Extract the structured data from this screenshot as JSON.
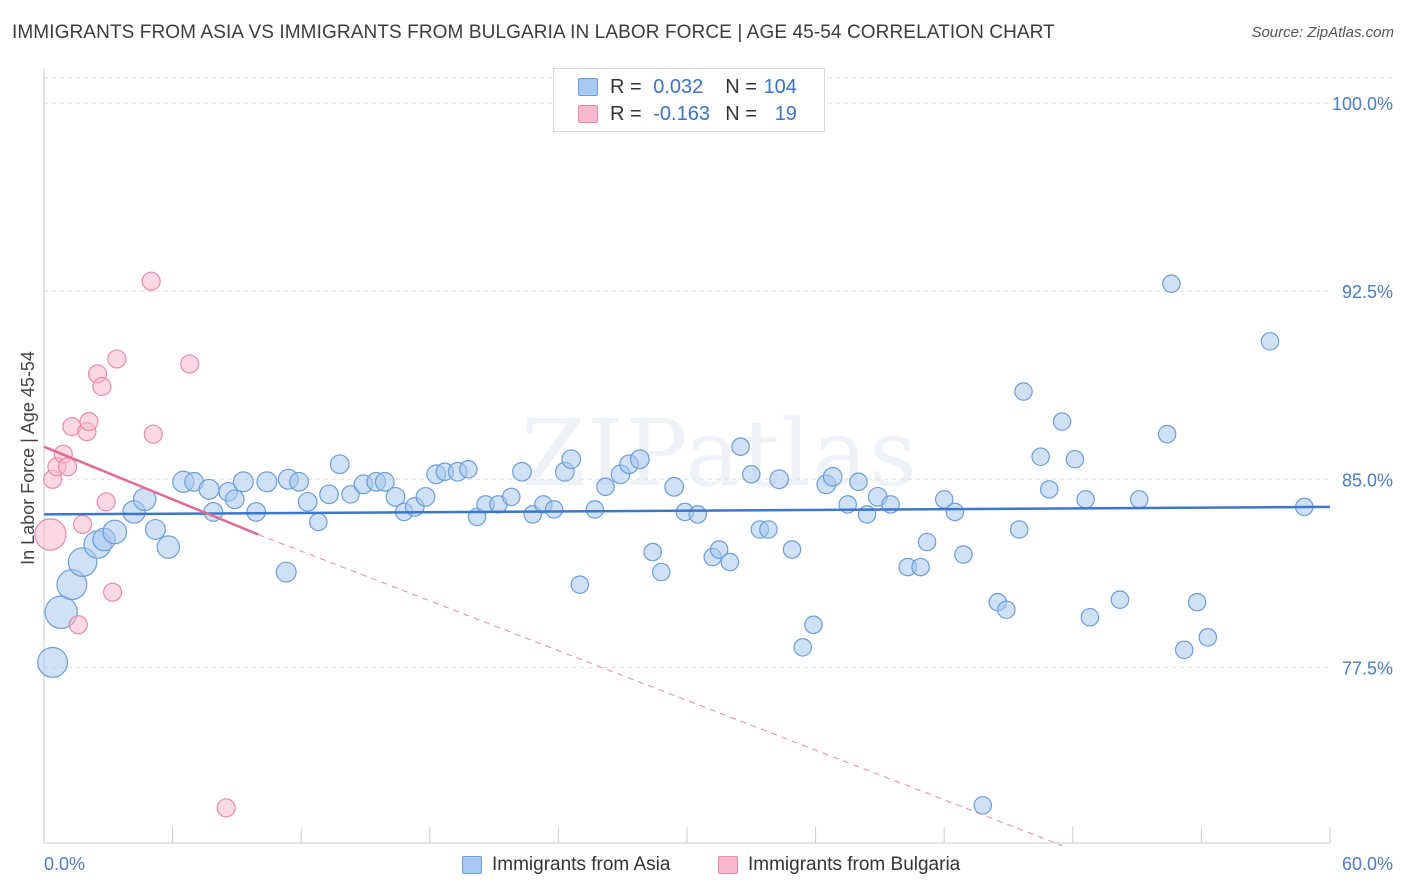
{
  "title": "IMMIGRANTS FROM ASIA VS IMMIGRANTS FROM BULGARIA IN LABOR FORCE | AGE 45-54 CORRELATION CHART",
  "source": "Source: ZipAtlas.com",
  "watermark": "ZIPatlas",
  "colors": {
    "asia_fill": "#a9c8ef",
    "asia_stroke": "#6b9ed9",
    "asia_line": "#3b78cc",
    "bulgaria_fill": "#f7b9cc",
    "bulgaria_stroke": "#e88aa6",
    "bulgaria_line": "#e06b93",
    "tick_text": "#4a7cc4"
  },
  "legend": {
    "asia": {
      "r_label": "R =",
      "r_value": "0.032",
      "n_label": "N =",
      "n_value": "104"
    },
    "bulgaria": {
      "r_label": "R =",
      "r_value": "-0.163",
      "n_label": "N =",
      "n_value": "19"
    }
  },
  "bottom_legend": {
    "asia": "Immigrants from Asia",
    "bulgaria": "Immigrants from Bulgaria"
  },
  "chart_data": {
    "type": "scatter",
    "title": "IMMIGRANTS FROM ASIA VS IMMIGRANTS FROM BULGARIA IN LABOR FORCE | AGE 45-54 CORRELATION CHART",
    "xlabel": "",
    "ylabel": "In Labor Force | Age 45-54",
    "xlim": [
      0,
      60
    ],
    "ylim": [
      70.5,
      101
    ],
    "x_tick_labels": {
      "left": "0.0%",
      "right": "60.0%"
    },
    "y_ticks": [
      {
        "value": 100.0,
        "label": "100.0%"
      },
      {
        "value": 92.5,
        "label": "92.5%"
      },
      {
        "value": 85.0,
        "label": "85.0%"
      },
      {
        "value": 77.5,
        "label": "77.5%"
      }
    ],
    "series": [
      {
        "name": "Immigrants from Asia",
        "trend": {
          "x0": 0,
          "y0": 83.6,
          "x1": 60,
          "y1": 83.9
        },
        "points": [
          [
            0.4,
            77.7,
            2.4
          ],
          [
            0.8,
            79.7,
            2.6
          ],
          [
            1.3,
            80.8,
            2.4
          ],
          [
            1.8,
            81.7,
            2.3
          ],
          [
            2.5,
            82.4,
            2.2
          ],
          [
            2.8,
            82.6,
            1.8
          ],
          [
            3.3,
            82.9,
            1.9
          ],
          [
            4.2,
            83.7,
            1.8
          ],
          [
            4.7,
            84.2,
            1.8
          ],
          [
            5.2,
            83.0,
            1.6
          ],
          [
            5.8,
            82.3,
            1.8
          ],
          [
            6.5,
            84.9,
            1.7
          ],
          [
            7.0,
            84.9,
            1.5
          ],
          [
            7.7,
            84.6,
            1.6
          ],
          [
            7.9,
            83.7,
            1.5
          ],
          [
            8.6,
            84.5,
            1.5
          ],
          [
            8.9,
            84.2,
            1.5
          ],
          [
            9.3,
            84.9,
            1.6
          ],
          [
            9.9,
            83.7,
            1.5
          ],
          [
            10.4,
            84.9,
            1.6
          ],
          [
            11.3,
            81.3,
            1.6
          ],
          [
            11.4,
            85.0,
            1.6
          ],
          [
            11.9,
            84.9,
            1.5
          ],
          [
            12.3,
            84.1,
            1.5
          ],
          [
            12.8,
            83.3,
            1.4
          ],
          [
            13.3,
            84.4,
            1.5
          ],
          [
            13.8,
            85.6,
            1.5
          ],
          [
            14.3,
            84.4,
            1.4
          ],
          [
            14.9,
            84.8,
            1.5
          ],
          [
            15.5,
            84.9,
            1.5
          ],
          [
            15.9,
            84.9,
            1.5
          ],
          [
            16.4,
            84.3,
            1.5
          ],
          [
            16.8,
            83.7,
            1.4
          ],
          [
            17.3,
            83.9,
            1.5
          ],
          [
            17.8,
            84.3,
            1.5
          ],
          [
            18.3,
            85.2,
            1.5
          ],
          [
            18.7,
            85.3,
            1.4
          ],
          [
            19.3,
            85.3,
            1.5
          ],
          [
            19.8,
            85.4,
            1.4
          ],
          [
            20.2,
            83.5,
            1.4
          ],
          [
            20.6,
            84.0,
            1.4
          ],
          [
            21.2,
            84.0,
            1.4
          ],
          [
            21.8,
            84.3,
            1.4
          ],
          [
            22.3,
            85.3,
            1.5
          ],
          [
            22.8,
            83.6,
            1.4
          ],
          [
            23.3,
            84.0,
            1.4
          ],
          [
            23.8,
            83.8,
            1.4
          ],
          [
            24.3,
            85.3,
            1.5
          ],
          [
            24.6,
            85.8,
            1.5
          ],
          [
            25.0,
            80.8,
            1.4
          ],
          [
            25.7,
            83.8,
            1.4
          ],
          [
            26.2,
            84.7,
            1.4
          ],
          [
            26.9,
            85.2,
            1.5
          ],
          [
            27.3,
            85.6,
            1.5
          ],
          [
            27.8,
            85.8,
            1.5
          ],
          [
            28.4,
            82.1,
            1.4
          ],
          [
            28.8,
            81.3,
            1.4
          ],
          [
            29.4,
            84.7,
            1.5
          ],
          [
            29.9,
            83.7,
            1.4
          ],
          [
            30.5,
            83.6,
            1.4
          ],
          [
            31.2,
            81.9,
            1.4
          ],
          [
            31.5,
            82.2,
            1.4
          ],
          [
            32.0,
            81.7,
            1.4
          ],
          [
            32.5,
            86.3,
            1.4
          ],
          [
            33.0,
            85.2,
            1.4
          ],
          [
            33.4,
            83.0,
            1.4
          ],
          [
            33.8,
            83.0,
            1.4
          ],
          [
            34.3,
            85.0,
            1.5
          ],
          [
            34.9,
            82.2,
            1.4
          ],
          [
            35.4,
            78.3,
            1.4
          ],
          [
            35.9,
            79.2,
            1.4
          ],
          [
            36.5,
            84.8,
            1.5
          ],
          [
            36.8,
            85.1,
            1.5
          ],
          [
            37.5,
            84.0,
            1.4
          ],
          [
            38.0,
            84.9,
            1.4
          ],
          [
            38.4,
            83.6,
            1.4
          ],
          [
            38.9,
            84.3,
            1.5
          ],
          [
            39.5,
            84.0,
            1.4
          ],
          [
            40.3,
            81.5,
            1.4
          ],
          [
            40.9,
            81.5,
            1.4
          ],
          [
            41.2,
            82.5,
            1.4
          ],
          [
            42.0,
            84.2,
            1.4
          ],
          [
            42.5,
            83.7,
            1.4
          ],
          [
            42.9,
            82.0,
            1.4
          ],
          [
            43.8,
            72.0,
            1.4
          ],
          [
            44.5,
            80.1,
            1.4
          ],
          [
            44.9,
            79.8,
            1.4
          ],
          [
            45.5,
            83.0,
            1.4
          ],
          [
            45.7,
            88.5,
            1.4
          ],
          [
            46.5,
            85.9,
            1.4
          ],
          [
            46.9,
            84.6,
            1.4
          ],
          [
            47.5,
            87.3,
            1.4
          ],
          [
            48.1,
            85.8,
            1.4
          ],
          [
            48.6,
            84.2,
            1.4
          ],
          [
            48.8,
            79.5,
            1.4
          ],
          [
            50.2,
            80.2,
            1.4
          ],
          [
            51.1,
            84.2,
            1.4
          ],
          [
            52.4,
            86.8,
            1.4
          ],
          [
            52.6,
            92.8,
            1.4
          ],
          [
            53.2,
            78.2,
            1.4
          ],
          [
            53.8,
            80.1,
            1.4
          ],
          [
            54.3,
            78.7,
            1.4
          ],
          [
            57.2,
            90.5,
            1.4
          ],
          [
            58.8,
            83.9,
            1.4
          ]
        ]
      },
      {
        "name": "Immigrants from Bulgaria",
        "trend": {
          "x0": 0,
          "y0": 86.3,
          "x1": 10,
          "y1": 82.8
        },
        "trend_extension": {
          "x0": 10,
          "y0": 82.8,
          "x1": 47.5,
          "y1": 70.4
        },
        "points": [
          [
            0.3,
            82.8,
            2.6
          ],
          [
            0.4,
            85.0,
            1.5
          ],
          [
            0.6,
            85.5,
            1.5
          ],
          [
            0.9,
            86.0,
            1.5
          ],
          [
            1.1,
            85.5,
            1.5
          ],
          [
            1.3,
            87.1,
            1.5
          ],
          [
            1.6,
            79.2,
            1.5
          ],
          [
            1.8,
            83.2,
            1.5
          ],
          [
            2.0,
            86.9,
            1.5
          ],
          [
            2.1,
            87.3,
            1.5
          ],
          [
            2.5,
            89.2,
            1.5
          ],
          [
            2.7,
            88.7,
            1.5
          ],
          [
            2.9,
            84.1,
            1.5
          ],
          [
            3.2,
            80.5,
            1.5
          ],
          [
            3.4,
            89.8,
            1.5
          ],
          [
            5.0,
            92.9,
            1.5
          ],
          [
            5.1,
            86.8,
            1.5
          ],
          [
            6.8,
            89.6,
            1.5
          ],
          [
            8.5,
            71.9,
            1.5
          ]
        ]
      }
    ]
  }
}
